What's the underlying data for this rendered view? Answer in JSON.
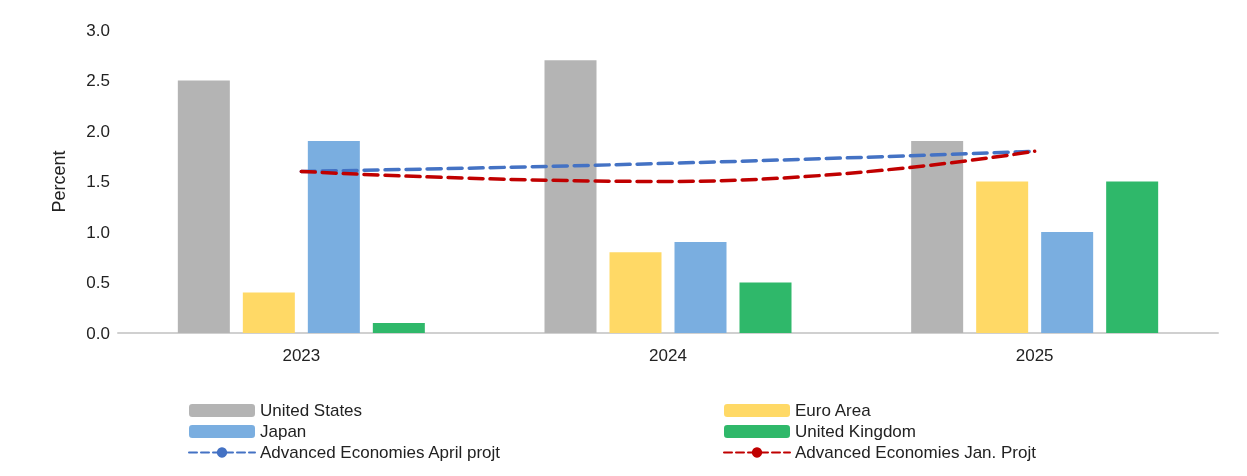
{
  "chart_data": {
    "type": "bar",
    "ylabel": "Percent",
    "categories": [
      "2023",
      "2024",
      "2025"
    ],
    "series": [
      {
        "name": "United States",
        "color": "#b4b4b4",
        "values": [
          2.5,
          2.7,
          1.9
        ]
      },
      {
        "name": "Euro Area",
        "color": "#ffd966",
        "values": [
          0.4,
          0.8,
          1.5
        ]
      },
      {
        "name": "Japan",
        "color": "#7aaee0",
        "values": [
          1.9,
          0.9,
          1.0
        ]
      },
      {
        "name": "United Kingdom",
        "color": "#2fb86a",
        "values": [
          0.1,
          0.5,
          1.5
        ]
      },
      {
        "name": "Advanced Economies April projt",
        "type": "line",
        "color": "#4472c4",
        "line_style": "dashed",
        "values": [
          1.6,
          1.68,
          1.8
        ]
      },
      {
        "name": "Advanced Economies Jan. Projt",
        "type": "line",
        "color": "#c00000",
        "line_style": "dashed",
        "values": [
          1.6,
          1.5,
          1.8
        ]
      }
    ],
    "ylim": [
      0,
      3
    ],
    "yticks": [
      {
        "value": 0,
        "label": "0.0"
      },
      {
        "value": 0.5,
        "label": "0.5"
      },
      {
        "value": 1,
        "label": "1.0"
      },
      {
        "value": 1.5,
        "label": "1.5"
      },
      {
        "value": 2,
        "label": "2.0"
      },
      {
        "value": 2.5,
        "label": "2.5"
      },
      {
        "value": 3,
        "label": "3.0"
      }
    ],
    "grid": false,
    "legend": "bottom",
    "marker": "none"
  }
}
